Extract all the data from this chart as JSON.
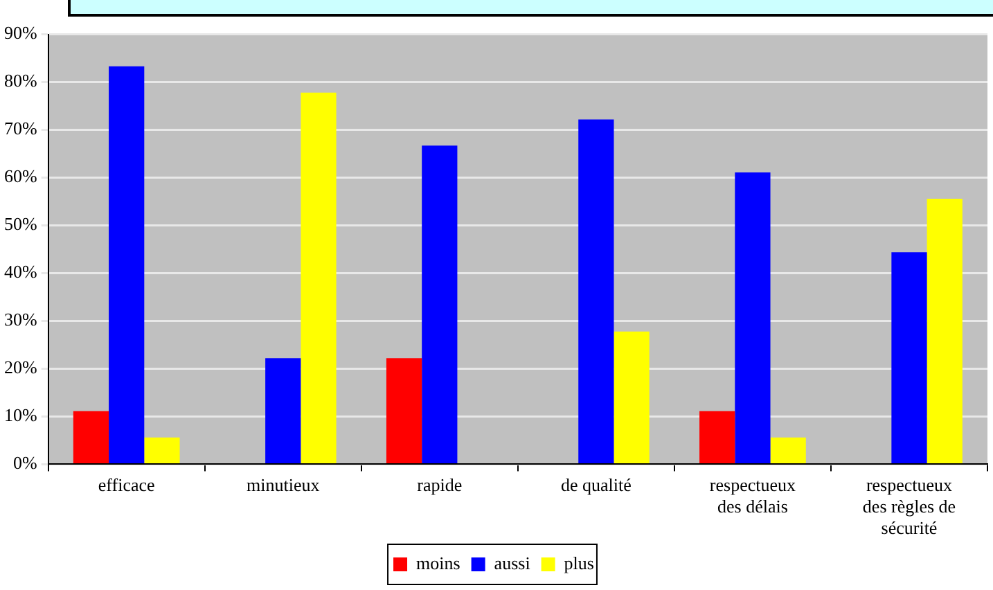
{
  "chart_data": {
    "type": "bar",
    "categories": [
      "efficace",
      "minutieux",
      "rapide",
      "de qualité",
      "respectueux des délais",
      "respectueux des règles de sécurité"
    ],
    "series": [
      {
        "name": "moins",
        "color": "#ff0000",
        "values": [
          11.1,
          null,
          22.2,
          null,
          11.1,
          null
        ]
      },
      {
        "name": "aussi",
        "color": "#0000ff",
        "values": [
          83.3,
          22.2,
          66.7,
          72.2,
          61.1,
          44.4
        ]
      },
      {
        "name": "plus",
        "color": "#ffff00",
        "values": [
          5.6,
          77.8,
          null,
          27.8,
          5.6,
          55.6
        ]
      }
    ],
    "ylim": [
      0,
      90
    ],
    "yticks": [
      {
        "value": 0,
        "label": "0%"
      },
      {
        "value": 10,
        "label": "10%"
      },
      {
        "value": 20,
        "label": "20%"
      },
      {
        "value": 30,
        "label": "30%"
      },
      {
        "value": 40,
        "label": "40%"
      },
      {
        "value": 50,
        "label": "50%"
      },
      {
        "value": 60,
        "label": "60%"
      },
      {
        "value": 70,
        "label": "70%"
      },
      {
        "value": 80,
        "label": "80%"
      },
      {
        "value": 90,
        "label": "90%"
      }
    ],
    "grid": "y",
    "legend": "bottom"
  }
}
